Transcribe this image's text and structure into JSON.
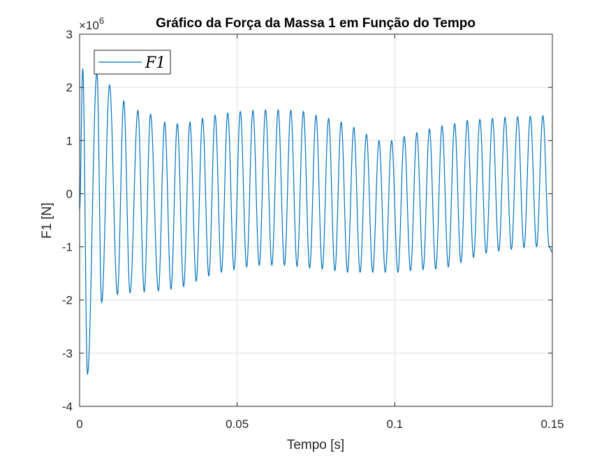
{
  "chart_data": {
    "type": "line",
    "title": "Gráfico da Força da Massa 1 em Função do Tempo",
    "xlabel": "Tempo [s]",
    "ylabel": "F1 [N]",
    "y_exponent_label": "×10",
    "y_exponent_power": "6",
    "xlim": [
      0,
      0.15
    ],
    "ylim": [
      -4,
      3
    ],
    "xticks": [
      0,
      0.05,
      0.1,
      0.15
    ],
    "xtick_labels": [
      "0",
      "0.05",
      "0.1",
      "0.15"
    ],
    "yticks": [
      -4,
      -3,
      -2,
      -1,
      0,
      1,
      2,
      3
    ],
    "ytick_labels": [
      "-4",
      "-3",
      "-2",
      "-1",
      "0",
      "1",
      "2",
      "3"
    ],
    "grid": true,
    "legend_position": "top-left",
    "series": [
      {
        "name": "F1",
        "color": "#0072BD",
        "peaks": {
          "t": [
            0.001,
            0.0055,
            0.0095,
            0.014,
            0.0185,
            0.0225,
            0.027,
            0.031,
            0.035,
            0.039,
            0.043,
            0.047,
            0.051,
            0.055,
            0.059,
            0.063,
            0.067,
            0.071,
            0.075,
            0.079,
            0.083,
            0.087,
            0.091,
            0.095,
            0.099,
            0.103,
            0.107,
            0.111,
            0.115,
            0.119,
            0.123,
            0.127,
            0.131,
            0.135,
            0.139,
            0.143,
            0.147
          ],
          "F1": [
            2.35,
            2.3,
            2.05,
            1.75,
            1.57,
            1.5,
            1.35,
            1.32,
            1.35,
            1.42,
            1.48,
            1.52,
            1.55,
            1.57,
            1.58,
            1.58,
            1.57,
            1.55,
            1.48,
            1.42,
            1.35,
            1.25,
            1.12,
            1.0,
            1.0,
            1.08,
            1.15,
            1.22,
            1.28,
            1.32,
            1.38,
            1.4,
            1.42,
            1.44,
            1.45,
            1.46,
            1.47
          ]
        },
        "troughs": {
          "t": [
            0.0025,
            0.007,
            0.012,
            0.016,
            0.0205,
            0.025,
            0.029,
            0.033,
            0.037,
            0.041,
            0.045,
            0.049,
            0.053,
            0.057,
            0.061,
            0.065,
            0.069,
            0.073,
            0.077,
            0.081,
            0.085,
            0.089,
            0.093,
            0.097,
            0.101,
            0.105,
            0.109,
            0.113,
            0.117,
            0.121,
            0.125,
            0.129,
            0.133,
            0.137,
            0.141,
            0.145,
            0.149
          ],
          "F1": [
            -3.4,
            -2.05,
            -1.9,
            -1.87,
            -1.85,
            -1.83,
            -1.8,
            -1.75,
            -1.65,
            -1.55,
            -1.48,
            -1.43,
            -1.38,
            -1.35,
            -1.35,
            -1.35,
            -1.37,
            -1.4,
            -1.42,
            -1.45,
            -1.48,
            -1.48,
            -1.48,
            -1.48,
            -1.48,
            -1.45,
            -1.43,
            -1.42,
            -1.38,
            -1.3,
            -1.2,
            -1.12,
            -1.08,
            -1.05,
            -1.02,
            -1.0,
            -1.0
          ]
        }
      }
    ]
  }
}
